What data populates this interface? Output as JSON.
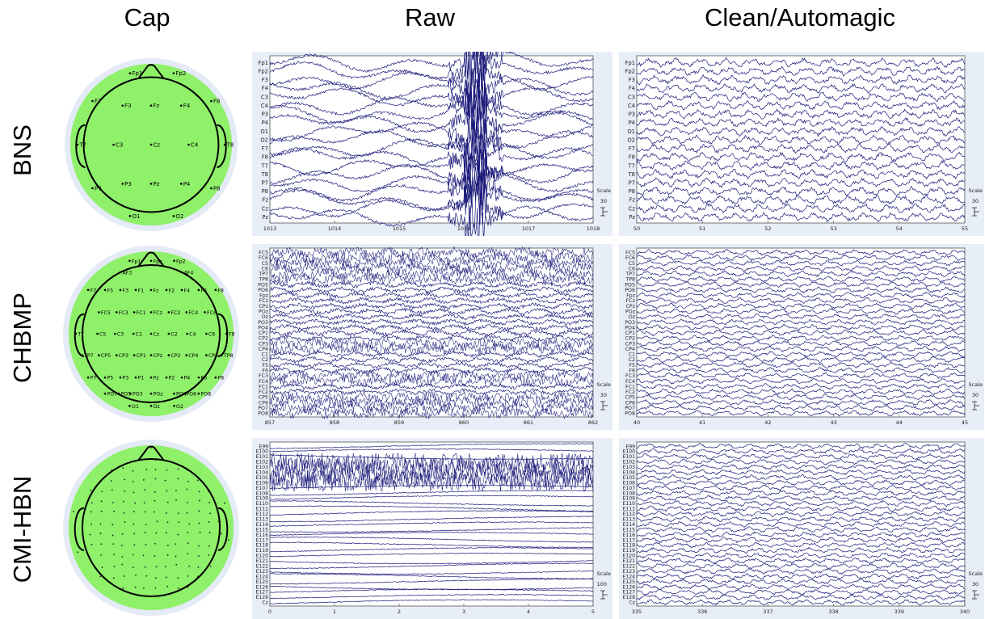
{
  "columns": {
    "cap": "Cap",
    "raw": "Raw",
    "clean": "Clean/Automagic"
  },
  "rows": [
    {
      "id": "bns",
      "label": "BNS",
      "cap_electrodes": [
        "Fp1",
        "Fp2",
        "F7",
        "F3",
        "Fz",
        "F4",
        "F8",
        "T7",
        "C3",
        "Cz",
        "C4",
        "T8",
        "P7",
        "P3",
        "Pz",
        "P4",
        "P8",
        "O1",
        "O2"
      ],
      "channels": [
        "Fp1",
        "Fp2",
        "F3",
        "F4",
        "C3",
        "C4",
        "P3",
        "P4",
        "O1",
        "O2",
        "F7",
        "F8",
        "T7",
        "T8",
        "P7",
        "P8",
        "Fz",
        "Cz",
        "Pz"
      ],
      "raw": {
        "x_ticks": [
          "1013",
          "1014",
          "1015",
          "1016",
          "1017",
          "1018"
        ],
        "scale_label": "Scale",
        "scale_value": "30"
      },
      "clean": {
        "x_ticks": [
          "50",
          "51",
          "52",
          "53",
          "54",
          "55"
        ],
        "scale_label": "Scale",
        "scale_value": "30"
      }
    },
    {
      "id": "chbmp",
      "label": "CHBMP",
      "cap_electrodes": [
        "Fp1",
        "Fpz",
        "Fp2",
        "AF3",
        "AF4",
        "F7",
        "F5",
        "F3",
        "F1",
        "Fz",
        "F2",
        "F4",
        "F6",
        "F8",
        "FC5",
        "FC3",
        "FC1",
        "FCz",
        "FC2",
        "FC4",
        "FC6",
        "T7",
        "C5",
        "C3",
        "C1",
        "Cz",
        "C2",
        "C4",
        "C6",
        "T8",
        "TP7",
        "CP5",
        "CP3",
        "CP1",
        "CPz",
        "CP2",
        "CP4",
        "CP6",
        "TP8",
        "P7",
        "P5",
        "P3",
        "P1",
        "Pz",
        "P2",
        "P4",
        "P6",
        "P8",
        "PO7",
        "PO5",
        "PO3",
        "POz",
        "PO4",
        "PO6",
        "PO8",
        "O1",
        "Oz",
        "O2"
      ],
      "channels": [
        "FC5",
        "FC6",
        "C5",
        "C6",
        "TP7",
        "TP8",
        "PO5",
        "PO6",
        "Fpz",
        "FCz",
        "CPz",
        "POz",
        "Oz",
        "PO3",
        "PO4",
        "CP1",
        "CP2",
        "CP3",
        "CP4",
        "C1",
        "C2",
        "F5",
        "F6",
        "FC3",
        "FC4",
        "FC1",
        "FC2",
        "CP5",
        "CP6",
        "PO7",
        "PO8"
      ],
      "raw": {
        "x_ticks": [
          "857",
          "858",
          "859",
          "860",
          "861",
          "862"
        ],
        "scale_label": "Scale",
        "scale_value": "30"
      },
      "clean": {
        "x_ticks": [
          "40",
          "41",
          "42",
          "43",
          "44",
          "45"
        ],
        "scale_label": "Scale",
        "scale_value": "30"
      }
    },
    {
      "id": "cmi-hbn",
      "label": "CMI-HBN",
      "cap_electrodes": [],
      "channels": [
        "E99",
        "E100",
        "E101",
        "E102",
        "E103",
        "E104",
        "E105",
        "E106",
        "E107",
        "E108",
        "E109",
        "E110",
        "E111",
        "E112",
        "E113",
        "E114",
        "E115",
        "E116",
        "E117",
        "E118",
        "E119",
        "E120",
        "E121",
        "E122",
        "E123",
        "E124",
        "E125",
        "E126",
        "E127",
        "E128",
        "Cz"
      ],
      "raw": {
        "x_ticks": [
          "0",
          "1",
          "2",
          "3",
          "4",
          "5"
        ],
        "scale_label": "Scale",
        "scale_value": "100"
      },
      "clean": {
        "x_ticks": [
          "335",
          "336",
          "337",
          "338",
          "339",
          "340"
        ],
        "scale_label": "Scale",
        "scale_value": "30"
      }
    }
  ],
  "colors": {
    "trace": "#1a1a7a",
    "cap_fill": "#8ff06a",
    "cap_ring": "#e4eaf6",
    "panel_bg": "#e8eef8"
  }
}
